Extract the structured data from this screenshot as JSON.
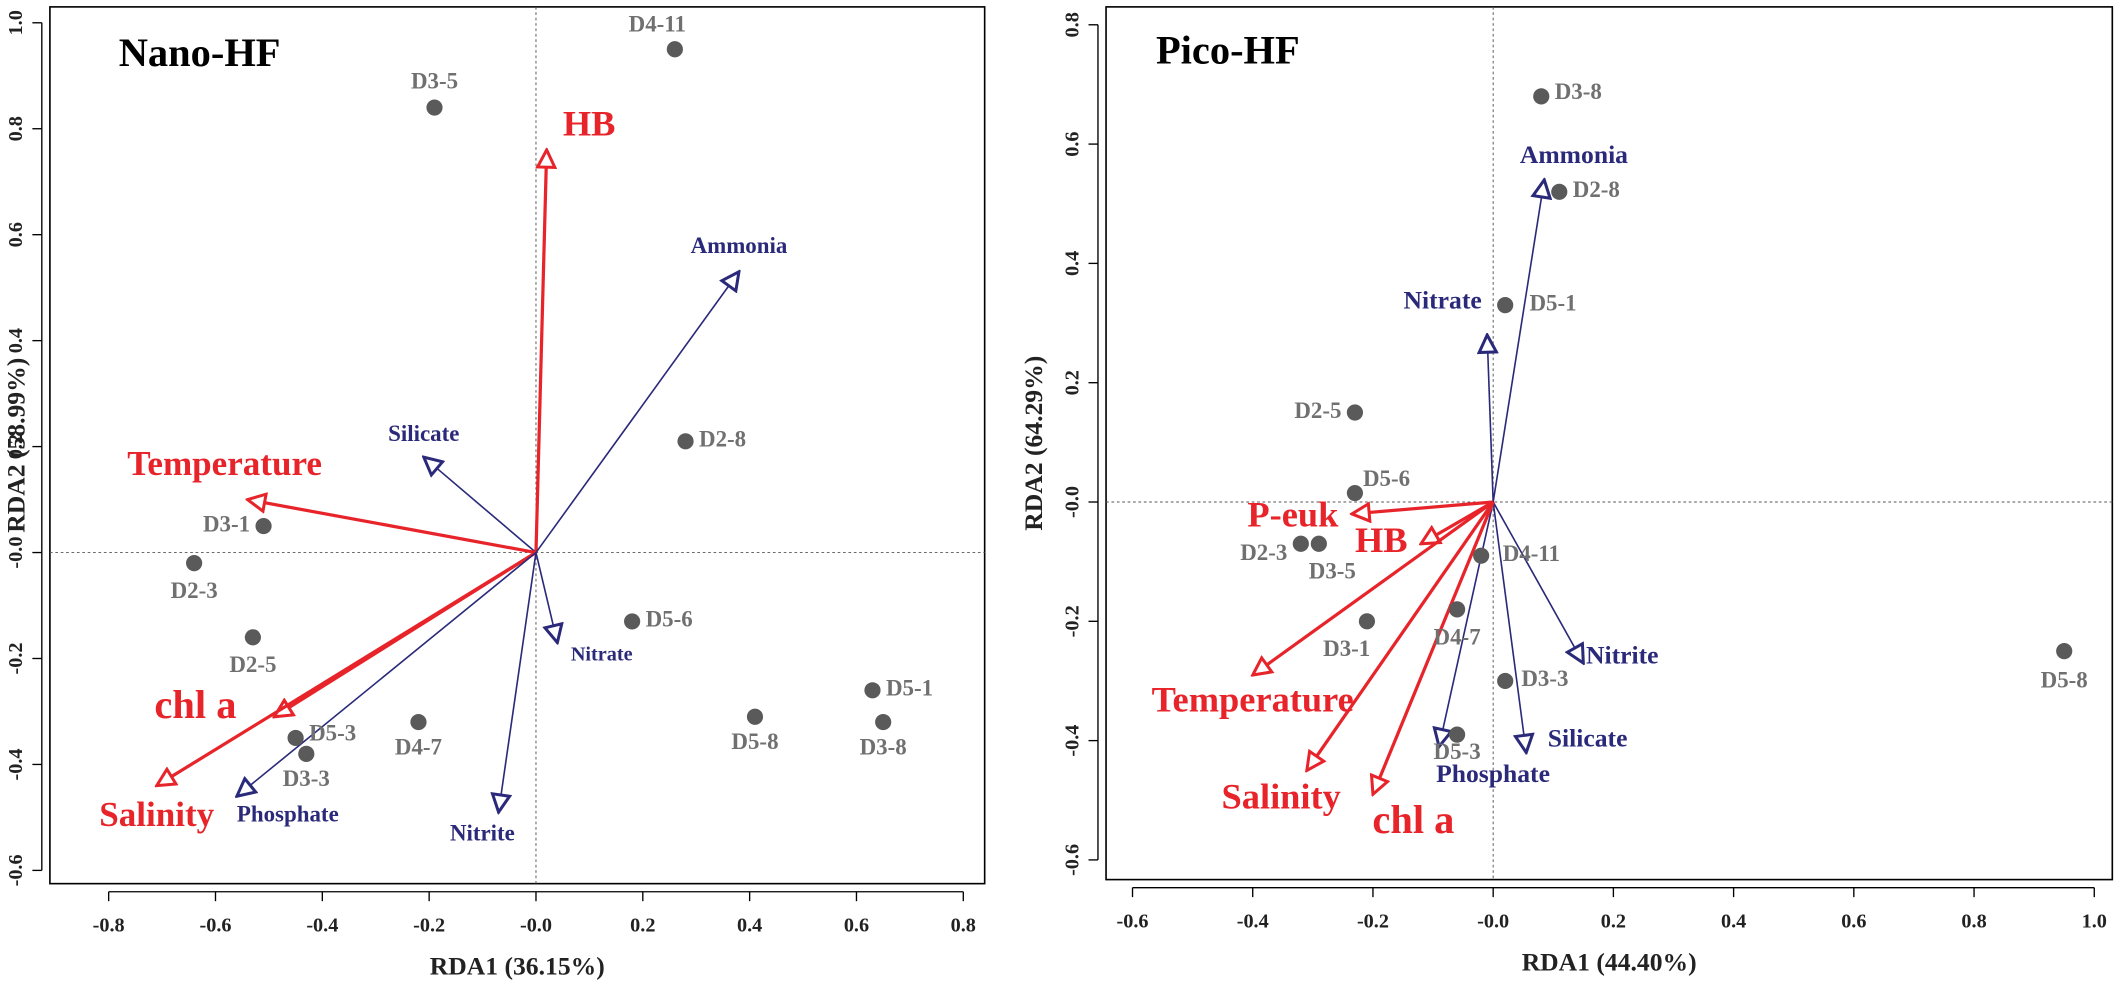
{
  "chart_data": [
    {
      "type": "biplot",
      "title": "Nano-HF",
      "x_label": "RDA1 (36.15%)",
      "y_label": "RDA2 (58.99%)",
      "xlim": [
        -0.91,
        0.84
      ],
      "ylim": [
        -0.625,
        1.03
      ],
      "xticks": [
        -0.8,
        -0.6,
        -0.4,
        -0.2,
        {
          "value": 0,
          "label": "-0.0"
        },
        0.2,
        0.4,
        0.6,
        0.8
      ],
      "yticks": [
        -0.6,
        -0.4,
        -0.2,
        {
          "value": 0,
          "label": "-0.0"
        },
        0.2,
        0.4,
        0.6,
        0.8,
        {
          "value": 1,
          "label": "1.0"
        }
      ],
      "point_color": "#5a5a5a",
      "points": {
        "labels": [
          "D4-11",
          "D3-5",
          "D2-8",
          "D3-1",
          "D2-3",
          "D2-5",
          "D5-6",
          "D5-3",
          "D3-3",
          "D4-7",
          "D5-8",
          "D5-1",
          "D3-8"
        ],
        "x": [
          0.26,
          -0.19,
          0.28,
          -0.51,
          -0.64,
          -0.53,
          0.18,
          -0.45,
          -0.43,
          -0.22,
          0.41,
          0.63,
          0.65
        ],
        "y": [
          0.95,
          0.84,
          0.21,
          0.05,
          -0.02,
          -0.16,
          -0.13,
          -0.35,
          -0.38,
          -0.32,
          -0.31,
          -0.26,
          -0.32
        ]
      },
      "arrows": {
        "labels": [
          "HB",
          "Ammonia",
          "Silicate",
          "Temperature",
          "Nitrate",
          "chl a",
          "Salinity",
          "Phosphate",
          "Nitrite"
        ],
        "x": [
          0.02,
          0.38,
          -0.21,
          -0.54,
          0.04,
          -0.49,
          -0.71,
          -0.56,
          -0.07
        ],
        "y": [
          0.76,
          0.53,
          0.18,
          0.1,
          -0.17,
          -0.31,
          -0.44,
          -0.46,
          -0.49
        ],
        "colors": [
          "#e8242b",
          "#2b2a7a",
          "#2b2a7a",
          "#e8242b",
          "#2b2a7a",
          "#e8242b",
          "#e8242b",
          "#2b2a7a",
          "#2b2a7a"
        ]
      }
    },
    {
      "type": "biplot",
      "title": "Pico-HF",
      "x_label": "RDA1 (44.40%)",
      "y_label": "RDA2 (64.29%)",
      "xlim": [
        -0.644,
        1.03
      ],
      "ylim": [
        -0.633,
        0.83
      ],
      "xticks": [
        -0.6,
        -0.4,
        -0.2,
        {
          "value": 0,
          "label": "-0.0"
        },
        0.2,
        0.4,
        0.6,
        0.8,
        {
          "value": 1,
          "label": "1.0"
        }
      ],
      "yticks": [
        -0.6,
        -0.4,
        -0.2,
        {
          "value": 0,
          "label": "-0.0"
        },
        0.2,
        0.4,
        0.6,
        0.8
      ],
      "point_color": "#5a5a5a",
      "points": {
        "labels": [
          "D3-8",
          "D2-8",
          "D5-1",
          "D2-5",
          "D5-6",
          "D2-3",
          "D3-5",
          "D4-11",
          "D3-1",
          "D4-7",
          "D3-3",
          "D5-3",
          "D5-8"
        ],
        "x": [
          0.08,
          0.11,
          0.02,
          -0.23,
          -0.23,
          -0.32,
          -0.29,
          -0.02,
          -0.21,
          -0.06,
          0.02,
          -0.06,
          0.95
        ],
        "y": [
          0.68,
          0.52,
          0.33,
          0.15,
          0.015,
          -0.07,
          -0.07,
          -0.09,
          -0.2,
          -0.18,
          -0.3,
          -0.39,
          -0.25
        ]
      },
      "arrows": {
        "labels": [
          "Ammonia",
          "Nitrate",
          "P-euk",
          "HB",
          "Nitrite",
          "Temperature",
          "Silicate",
          "Phosphate",
          "Salinity",
          "chl a"
        ],
        "x": [
          0.085,
          -0.01,
          -0.235,
          -0.12,
          0.15,
          -0.4,
          0.055,
          -0.09,
          -0.31,
          -0.2
        ],
        "y": [
          0.54,
          0.28,
          -0.02,
          -0.07,
          -0.27,
          -0.29,
          -0.42,
          -0.41,
          -0.45,
          -0.49
        ],
        "colors": [
          "#2b2a7a",
          "#2b2a7a",
          "#e8242b",
          "#e8242b",
          "#2b2a7a",
          "#e8242b",
          "#2b2a7a",
          "#2b2a7a",
          "#e8242b",
          "#e8242b"
        ]
      }
    }
  ]
}
